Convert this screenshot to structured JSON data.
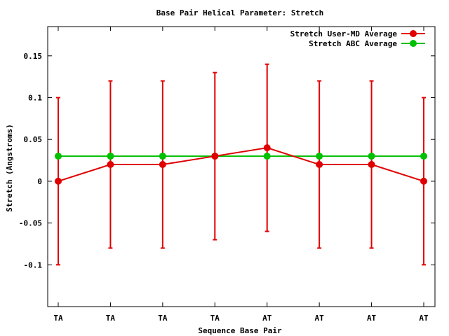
{
  "chart_data": {
    "type": "line",
    "title": "Base Pair Helical Parameter: Stretch",
    "xlabel": "Sequence Base Pair",
    "ylabel": "Stretch (Angstroms)",
    "categories": [
      "TA",
      "TA",
      "TA",
      "TA",
      "AT",
      "AT",
      "AT",
      "AT"
    ],
    "ylim": [
      -0.15,
      0.185
    ],
    "yticks": [
      -0.1,
      -0.05,
      0,
      0.05,
      0.1,
      0.15
    ],
    "ytick_labels": [
      "-0.1",
      "-0.05",
      "0",
      "0.05",
      "0.1",
      "0.15"
    ],
    "grid": false,
    "legend_position": "top-right",
    "series": [
      {
        "name": "Stretch User-MD Average",
        "color": "#e00000",
        "values": [
          0.0,
          0.02,
          0.02,
          0.03,
          0.04,
          0.02,
          0.02,
          0.0
        ],
        "error_low": [
          -0.1,
          -0.08,
          -0.08,
          -0.07,
          -0.06,
          -0.08,
          -0.08,
          -0.1
        ],
        "error_high": [
          0.1,
          0.12,
          0.12,
          0.13,
          0.14,
          0.12,
          0.12,
          0.1
        ]
      },
      {
        "name": "Stretch ABC Average",
        "color": "#00c000",
        "values": [
          0.03,
          0.03,
          0.03,
          0.03,
          0.03,
          0.03,
          0.03,
          0.03
        ]
      }
    ]
  }
}
